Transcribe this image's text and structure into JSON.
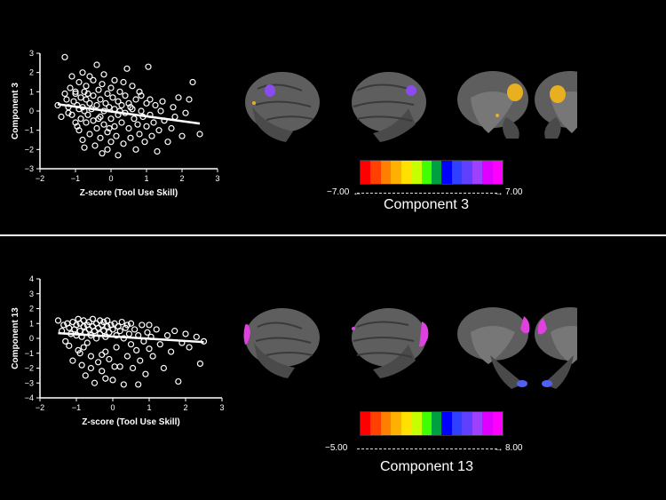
{
  "chart_data": [
    {
      "type": "scatter",
      "xlabel": "Z-score (Tool Use Skill)",
      "ylabel": "Component  3",
      "xlim": [
        -2,
        3
      ],
      "ylim": [
        -3,
        3
      ],
      "xticks": [
        "−2",
        "−1",
        "0",
        "1",
        "2",
        "3"
      ],
      "yticks": [
        "−3",
        "−2",
        "−1",
        "0",
        "1",
        "2",
        "3"
      ],
      "trendline": {
        "x0": -1.5,
        "y0": 0.35,
        "x1": 2.5,
        "y1": -0.65
      },
      "points": [
        [
          -1.5,
          0.3
        ],
        [
          -1.4,
          -0.3
        ],
        [
          -1.3,
          0.9
        ],
        [
          -1.3,
          2.8
        ],
        [
          -1.2,
          -0.1
        ],
        [
          -1.2,
          0.2
        ],
        [
          -1.15,
          1.2
        ],
        [
          -1.1,
          1.8
        ],
        [
          -1.1,
          -0.2
        ],
        [
          -1.05,
          0.5
        ],
        [
          -1.0,
          0.9
        ],
        [
          -1.0,
          -0.6
        ],
        [
          -1.0,
          1.0
        ],
        [
          -0.95,
          0.3
        ],
        [
          -0.9,
          -1.0
        ],
        [
          -0.9,
          1.5
        ],
        [
          -0.9,
          0.1
        ],
        [
          -0.85,
          0.7
        ],
        [
          -0.85,
          -0.4
        ],
        [
          -0.8,
          0.2
        ],
        [
          -0.8,
          2.0
        ],
        [
          -0.8,
          -1.5
        ],
        [
          -0.75,
          1.0
        ],
        [
          -0.75,
          0.0
        ],
        [
          -0.7,
          -0.6
        ],
        [
          -0.7,
          0.6
        ],
        [
          -0.7,
          1.3
        ],
        [
          -0.65,
          -0.2
        ],
        [
          -0.6,
          0.4
        ],
        [
          -0.6,
          -1.2
        ],
        [
          -0.6,
          1.8
        ],
        [
          -0.55,
          0.1
        ],
        [
          -0.5,
          -0.5
        ],
        [
          -0.5,
          0.8
        ],
        [
          -0.5,
          1.6
        ],
        [
          -0.45,
          -1.8
        ],
        [
          -0.4,
          0.3
        ],
        [
          -0.4,
          -0.9
        ],
        [
          -0.4,
          2.4
        ],
        [
          -0.35,
          1.1
        ],
        [
          -0.3,
          -0.3
        ],
        [
          -0.3,
          0.6
        ],
        [
          -0.3,
          -1.4
        ],
        [
          -0.25,
          1.4
        ],
        [
          -0.2,
          0.0
        ],
        [
          -0.2,
          -0.7
        ],
        [
          -0.2,
          1.9
        ],
        [
          -0.15,
          0.4
        ],
        [
          -0.1,
          -1.1
        ],
        [
          -0.1,
          0.9
        ],
        [
          -0.1,
          -2.0
        ],
        [
          -0.05,
          0.2
        ],
        [
          0.0,
          -0.4
        ],
        [
          0.0,
          1.2
        ],
        [
          0.0,
          -1.6
        ],
        [
          0.05,
          0.7
        ],
        [
          0.1,
          -0.8
        ],
        [
          0.1,
          0.1
        ],
        [
          0.1,
          1.6
        ],
        [
          0.15,
          -1.3
        ],
        [
          0.2,
          0.5
        ],
        [
          0.2,
          -0.2
        ],
        [
          0.2,
          -2.3
        ],
        [
          0.25,
          1.0
        ],
        [
          0.3,
          -0.6
        ],
        [
          0.3,
          0.3
        ],
        [
          0.35,
          -1.7
        ],
        [
          0.4,
          0.8
        ],
        [
          0.4,
          -0.1
        ],
        [
          0.45,
          2.2
        ],
        [
          0.5,
          -0.9
        ],
        [
          0.5,
          0.4
        ],
        [
          0.55,
          -1.4
        ],
        [
          0.6,
          0.1
        ],
        [
          0.6,
          1.3
        ],
        [
          0.65,
          -0.4
        ],
        [
          0.7,
          -2.0
        ],
        [
          0.7,
          0.6
        ],
        [
          0.75,
          -0.7
        ],
        [
          0.8,
          1.0
        ],
        [
          0.8,
          -1.2
        ],
        [
          0.85,
          0.0
        ],
        [
          0.9,
          -0.3
        ],
        [
          0.95,
          -1.6
        ],
        [
          1.0,
          0.4
        ],
        [
          1.0,
          -0.8
        ],
        [
          1.05,
          2.3
        ],
        [
          1.1,
          -0.2
        ],
        [
          1.1,
          0.6
        ],
        [
          1.15,
          -1.3
        ],
        [
          1.2,
          -0.6
        ],
        [
          1.25,
          0.3
        ],
        [
          1.3,
          -2.1
        ],
        [
          1.35,
          -1.0
        ],
        [
          1.4,
          0.0
        ],
        [
          1.5,
          -0.5
        ],
        [
          1.6,
          -1.6
        ],
        [
          1.7,
          -0.9
        ],
        [
          1.8,
          -0.3
        ],
        [
          1.9,
          0.7
        ],
        [
          2.0,
          -1.3
        ],
        [
          2.1,
          -0.1
        ],
        [
          2.2,
          0.6
        ],
        [
          2.3,
          1.5
        ],
        [
          2.5,
          -1.2
        ],
        [
          -1.25,
          0.6
        ],
        [
          -0.95,
          -0.8
        ],
        [
          -0.65,
          0.9
        ],
        [
          -0.35,
          -0.4
        ],
        [
          -0.05,
          -0.9
        ],
        [
          0.25,
          0.0
        ],
        [
          0.55,
          0.2
        ],
        [
          0.85,
          0.8
        ],
        [
          1.45,
          0.5
        ],
        [
          -0.75,
          -1.9
        ],
        [
          -0.25,
          -2.2
        ],
        [
          0.35,
          1.5
        ],
        [
          1.75,
          0.2
        ]
      ]
    },
    {
      "type": "scatter",
      "xlabel": "Z-score (Tool Use Skill)",
      "ylabel": "Component 13",
      "xlim": [
        -2,
        3
      ],
      "ylim": [
        -4,
        4
      ],
      "xticks": [
        "−2",
        "−1",
        "0",
        "1",
        "2",
        "3"
      ],
      "yticks": [
        "−4",
        "−3",
        "−2",
        "−1",
        "0",
        "1",
        "2",
        "3",
        "4"
      ],
      "trendline": {
        "x0": -1.5,
        "y0": 0.35,
        "x1": 2.5,
        "y1": -0.25
      },
      "points": [
        [
          -1.5,
          1.2
        ],
        [
          -1.4,
          0.5
        ],
        [
          -1.35,
          0.9
        ],
        [
          -1.3,
          -0.2
        ],
        [
          -1.25,
          1.0
        ],
        [
          -1.2,
          0.7
        ],
        [
          -1.15,
          0.3
        ],
        [
          -1.1,
          1.1
        ],
        [
          -1.1,
          -1.5
        ],
        [
          -1.05,
          0.6
        ],
        [
          -1.0,
          0.9
        ],
        [
          -1.0,
          0.2
        ],
        [
          -0.95,
          1.3
        ],
        [
          -0.95,
          -0.8
        ],
        [
          -0.9,
          0.5
        ],
        [
          -0.9,
          1.0
        ],
        [
          -0.85,
          0.1
        ],
        [
          -0.85,
          -1.8
        ],
        [
          -0.8,
          0.8
        ],
        [
          -0.8,
          1.2
        ],
        [
          -0.75,
          0.4
        ],
        [
          -0.75,
          -2.5
        ],
        [
          -0.7,
          0.9
        ],
        [
          -0.7,
          -0.3
        ],
        [
          -0.65,
          0.6
        ],
        [
          -0.65,
          1.1
        ],
        [
          -0.6,
          0.2
        ],
        [
          -0.6,
          -1.2
        ],
        [
          -0.55,
          0.8
        ],
        [
          -0.55,
          1.3
        ],
        [
          -0.5,
          0.5
        ],
        [
          -0.5,
          -3.0
        ],
        [
          -0.45,
          1.0
        ],
        [
          -0.45,
          0.0
        ],
        [
          -0.4,
          0.7
        ],
        [
          -0.4,
          -1.6
        ],
        [
          -0.35,
          1.2
        ],
        [
          -0.35,
          0.3
        ],
        [
          -0.3,
          0.9
        ],
        [
          -0.3,
          -2.2
        ],
        [
          -0.25,
          0.5
        ],
        [
          -0.25,
          1.1
        ],
        [
          -0.2,
          0.1
        ],
        [
          -0.2,
          -0.9
        ],
        [
          -0.15,
          0.8
        ],
        [
          -0.15,
          1.2
        ],
        [
          -0.1,
          0.4
        ],
        [
          -0.1,
          -1.4
        ],
        [
          -0.05,
          0.9
        ],
        [
          0.0,
          0.6
        ],
        [
          0.0,
          -2.8
        ],
        [
          0.05,
          1.0
        ],
        [
          0.1,
          0.2
        ],
        [
          0.1,
          -0.6
        ],
        [
          0.15,
          0.8
        ],
        [
          0.2,
          -1.9
        ],
        [
          0.2,
          0.5
        ],
        [
          0.25,
          1.1
        ],
        [
          0.3,
          0.0
        ],
        [
          0.3,
          -3.1
        ],
        [
          0.35,
          0.7
        ],
        [
          0.4,
          -1.2
        ],
        [
          0.45,
          0.3
        ],
        [
          0.5,
          1.0
        ],
        [
          0.5,
          -0.4
        ],
        [
          0.55,
          -2.0
        ],
        [
          0.6,
          0.6
        ],
        [
          0.65,
          -0.8
        ],
        [
          0.7,
          0.2
        ],
        [
          0.75,
          -1.5
        ],
        [
          0.8,
          0.9
        ],
        [
          0.85,
          -0.2
        ],
        [
          0.9,
          -2.4
        ],
        [
          0.95,
          0.4
        ],
        [
          1.0,
          -0.7
        ],
        [
          1.05,
          0.1
        ],
        [
          1.1,
          -1.2
        ],
        [
          1.2,
          0.6
        ],
        [
          1.3,
          -0.4
        ],
        [
          1.4,
          -2.0
        ],
        [
          1.5,
          0.2
        ],
        [
          1.6,
          -0.9
        ],
        [
          1.7,
          0.5
        ],
        [
          1.8,
          -2.9
        ],
        [
          1.9,
          -0.3
        ],
        [
          2.0,
          0.3
        ],
        [
          2.1,
          -0.6
        ],
        [
          2.3,
          0.1
        ],
        [
          2.4,
          -1.7
        ],
        [
          2.5,
          -0.2
        ],
        [
          -1.2,
          -0.5
        ],
        [
          -0.9,
          -1.0
        ],
        [
          -0.6,
          -2.0
        ],
        [
          -0.3,
          -1.1
        ],
        [
          0.05,
          -1.9
        ],
        [
          0.4,
          0.9
        ],
        [
          0.7,
          -3.1
        ],
        [
          1.0,
          0.9
        ],
        [
          -0.8,
          -0.6
        ],
        [
          -0.2,
          -2.7
        ]
      ]
    }
  ],
  "panels": [
    {
      "title": "Component 3",
      "scale_min": "−7.00",
      "scale_max": "7.00"
    },
    {
      "title": "Component 13",
      "scale_min": "−5.00",
      "scale_max": "8.00"
    }
  ],
  "colors": {
    "background": "#000000",
    "brain": "#5e5e5e",
    "activation_violet": "#8a4cf0",
    "activation_yellow": "#e8b020",
    "activation_magenta": "#e040e0",
    "activation_blue": "#5060f0",
    "colorbar": [
      "#ff0000",
      "#ff4000",
      "#ff8000",
      "#ffb000",
      "#ffe000",
      "#c8ff00",
      "#40ff00",
      "#00a040",
      "#0000ff",
      "#3040ff",
      "#6040ff",
      "#a040ff",
      "#e000ff",
      "#ff00ff"
    ]
  }
}
